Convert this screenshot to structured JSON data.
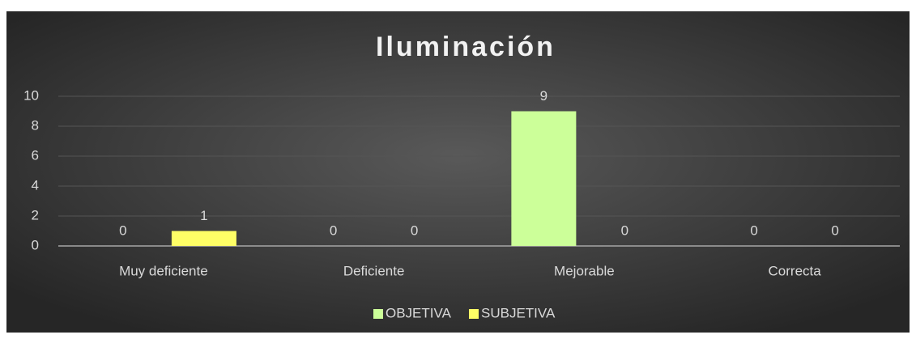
{
  "chart_data": {
    "type": "bar",
    "title": "Iluminación",
    "categories": [
      "Muy deficiente",
      "Deficiente",
      "Mejorable",
      "Correcta"
    ],
    "series": [
      {
        "name": "OBJETIVA",
        "color": "#ccff99",
        "values": [
          0,
          0,
          9,
          0
        ]
      },
      {
        "name": "SUBJETIVA",
        "color": "#ffff66",
        "values": [
          1,
          0,
          0,
          0
        ]
      }
    ],
    "ylim": [
      0,
      10
    ],
    "yticks": [
      0,
      2,
      4,
      6,
      8,
      10
    ],
    "grid": true,
    "legend": "bottom"
  }
}
